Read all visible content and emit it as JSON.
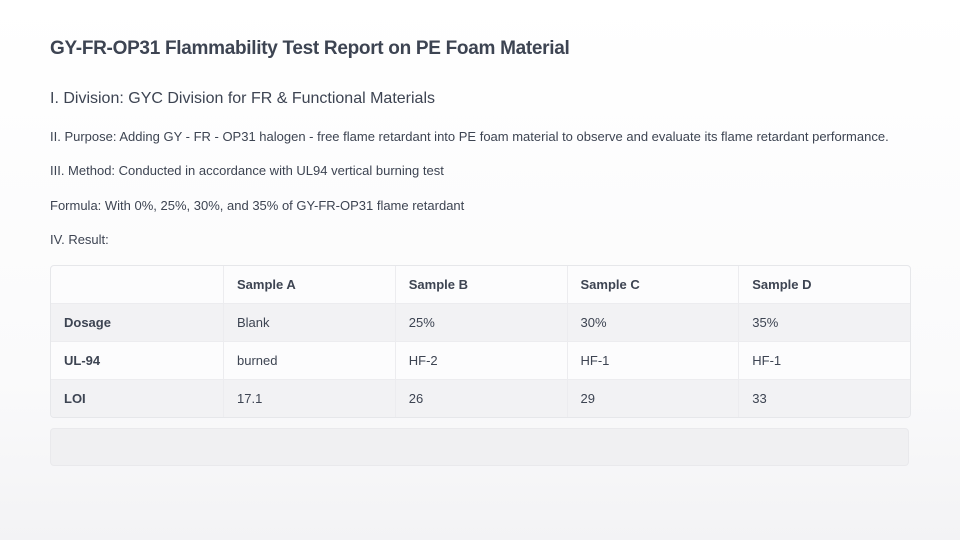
{
  "header": {
    "title": "GY-FR-OP31 Flammability Test Report on PE Foam Material"
  },
  "sections": {
    "division": "I. Division: GYC Division for FR & Functional Materials",
    "purpose": "II. Purpose: Adding GY - FR - OP31 halogen - free flame retardant into PE foam material to observe and evaluate its flame retardant performance.",
    "method": "III. Method: Conducted in accordance with UL94 vertical burning test",
    "formula": "Formula: With 0%, 25%, 30%, and 35% of GY-FR-OP31 flame retardant",
    "result": "IV. Result:"
  },
  "table": {
    "columns": [
      "Sample A",
      "Sample B",
      "Sample C",
      "Sample D"
    ],
    "rows": [
      {
        "label": "Dosage",
        "cells": [
          "Blank",
          "25%",
          "30%",
          "35%"
        ]
      },
      {
        "label": "UL-94",
        "cells": [
          "burned",
          "HF-2",
          "HF-1",
          "HF-1"
        ]
      },
      {
        "label": "LOI",
        "cells": [
          17.1,
          26,
          29,
          33
        ]
      }
    ]
  }
}
